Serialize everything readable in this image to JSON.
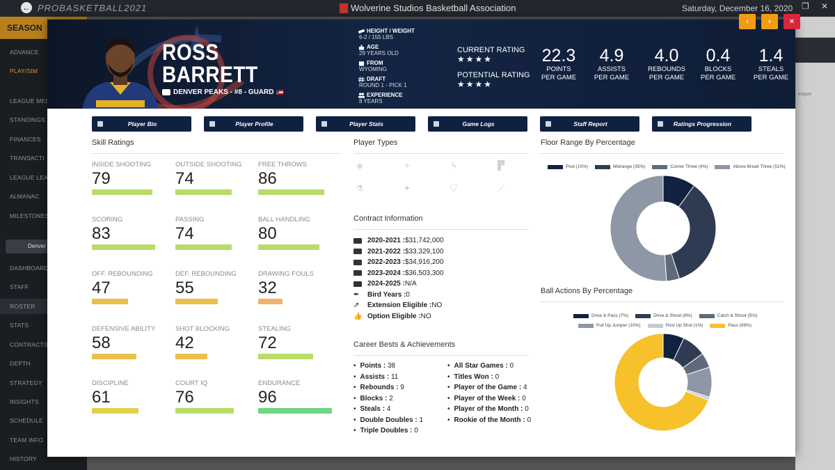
{
  "app": {
    "brand": "PROBASKETBALL2021",
    "league": "Wolverine Studios Basketball Association",
    "date": "Saturday, December 16, 2020"
  },
  "sidebar": {
    "season": "SEASON",
    "items": [
      "ADVANCE",
      "PLAY/SIM",
      "LEAGUE MED",
      "STANDINGS",
      "FINANCES",
      "TRANSACTI",
      "LEAGUE LEAD",
      "ALMANAC",
      "MILESTONES",
      "DASHBOARD",
      "STAFF",
      "ROSTER",
      "STATS",
      "CONTRACTS",
      "DEPTH",
      "STRATEGY",
      "INSIGHTS",
      "SCHEDULE",
      "TEAM INFO",
      "HISTORY"
    ],
    "team": "Denver"
  },
  "right_bg": {
    "league_text": "eague"
  },
  "player": {
    "first_name": "ROSS",
    "last_name": "BARRETT",
    "team_line": "DENVER PEAKS - #8 - GUARD",
    "height_weight_label": "HEIGHT / WEIGHT",
    "height_weight": "6-2 / 155 LBS",
    "age_label": "AGE",
    "age": "29 YEARS OLD",
    "from_label": "FROM",
    "from": "WYOMING",
    "draft_label": "DRAFT",
    "draft": "ROUND 1 - PICK 1",
    "experience_label": "EXPERIENCE",
    "experience": "8 YEARS",
    "current_rating_label": "CURRENT RATING",
    "current_stars": "★★★★",
    "potential_rating_label": "POTENTIAL RATING",
    "potential_stars": "★★★★"
  },
  "stats": [
    {
      "num": "22.3",
      "l1": "POINTS",
      "l2": "PER GAME"
    },
    {
      "num": "4.9",
      "l1": "ASSISTS",
      "l2": "PER GAME"
    },
    {
      "num": "4.0",
      "l1": "REBOUNDS",
      "l2": "PER GAME"
    },
    {
      "num": "0.4",
      "l1": "BLOCKS",
      "l2": "PER GAME"
    },
    {
      "num": "1.4",
      "l1": "STEALS",
      "l2": "PER GAME"
    }
  ],
  "nav": {
    "prev": "‹",
    "next": "›",
    "close": "×"
  },
  "tabs": [
    "Player Bio",
    "Player Profile",
    "Player Stats",
    "Game Logs",
    "Staff Report",
    "Ratings Progression"
  ],
  "sections": {
    "skill": "Skill Ratings",
    "types": "Player Types",
    "contract": "Contract Information",
    "career": "Career Bests & Achievements",
    "floor": "Floor Range By Percentage",
    "ball": "Ball Actions By Percentage"
  },
  "skills": [
    {
      "label": "INSIDE SHOOTING",
      "value": 79,
      "color": "#b7dc6a"
    },
    {
      "label": "OUTSIDE SHOOTING",
      "value": 74,
      "color": "#b7dc6a"
    },
    {
      "label": "FREE THROWS",
      "value": 86,
      "color": "#b7dc6a"
    },
    {
      "label": "SCORING",
      "value": 83,
      "color": "#b7dc6a"
    },
    {
      "label": "PASSING",
      "value": 74,
      "color": "#b7dc6a"
    },
    {
      "label": "BALL HANDLING",
      "value": 80,
      "color": "#b7dc6a"
    },
    {
      "label": "OFF. REBOUNDING",
      "value": 47,
      "color": "#e9c04a"
    },
    {
      "label": "DEF. REBOUNDING",
      "value": 55,
      "color": "#e9c04a"
    },
    {
      "label": "DRAWING FOULS",
      "value": 32,
      "color": "#efb46a"
    },
    {
      "label": "DEFENSIVE ABILITY",
      "value": 58,
      "color": "#e9c04a"
    },
    {
      "label": "SHOT BLOCKING",
      "value": 42,
      "color": "#e9c04a"
    },
    {
      "label": "STEALING",
      "value": 72,
      "color": "#b7dc6a"
    },
    {
      "label": "DISCIPLINE",
      "value": 61,
      "color": "#dfd24a"
    },
    {
      "label": "COURT IQ",
      "value": 76,
      "color": "#b7dc6a"
    },
    {
      "label": "ENDURANCE",
      "value": 96,
      "color": "#6fd681"
    }
  ],
  "contract": [
    {
      "label": "2020-2021 :",
      "value": " $31,742,000"
    },
    {
      "label": "2021-2022 :",
      "value": " $33,329,100"
    },
    {
      "label": "2022-2023 :",
      "value": " $34,916,200"
    },
    {
      "label": "2023-2024 :",
      "value": " $36,503,300"
    },
    {
      "label": "2024-2025 :",
      "value": " N/A"
    },
    {
      "label": "Bird Years :",
      "value": " 0"
    },
    {
      "label": "Extension Eligible :",
      "value": " NO"
    },
    {
      "label": "Option Eligible :",
      "value": " NO"
    }
  ],
  "career_left": [
    {
      "label": "Points :",
      "value": " 38"
    },
    {
      "label": "Assists :",
      "value": " 11"
    },
    {
      "label": "Rebounds :",
      "value": " 9"
    },
    {
      "label": "Blocks :",
      "value": " 2"
    },
    {
      "label": "Steals :",
      "value": " 4"
    },
    {
      "label": "Double Doubles :",
      "value": " 1"
    },
    {
      "label": "Triple Doubles :",
      "value": " 0"
    }
  ],
  "career_right": [
    {
      "label": "All Star Games :",
      "value": " 0"
    },
    {
      "label": "Titles Won :",
      "value": " 0"
    },
    {
      "label": "Player of the Game :",
      "value": " 4"
    },
    {
      "label": "Player of the Week :",
      "value": " 0"
    },
    {
      "label": "Player of the Month :",
      "value": " 0"
    },
    {
      "label": "Rookie of the Month :",
      "value": " 0"
    }
  ],
  "chart_data": [
    {
      "type": "pie",
      "title": "Floor Range By Percentage",
      "categories": [
        "Post (10%)",
        "Midrange (35%)",
        "Corner Three (4%)",
        "Above Break Three (51%)"
      ],
      "values": [
        10,
        35,
        4,
        51
      ],
      "colors": [
        "#12213f",
        "#2e3b52",
        "#5f6b7c",
        "#8e97a5"
      ]
    },
    {
      "type": "pie",
      "title": "Ball Actions By Percentage",
      "categories": [
        "Drive & Pass (7%)",
        "Drive & Shoot (8%)",
        "Catch & Shoot (5%)",
        "Pull Up Jumper (10%)",
        "Post Up Shot (1%)",
        "Pass (69%)"
      ],
      "values": [
        7,
        8,
        5,
        10,
        1,
        69
      ],
      "colors": [
        "#12213f",
        "#2e3b52",
        "#5f6b7c",
        "#8e97a5",
        "#c6cbd3",
        "#f6c12b"
      ]
    }
  ]
}
